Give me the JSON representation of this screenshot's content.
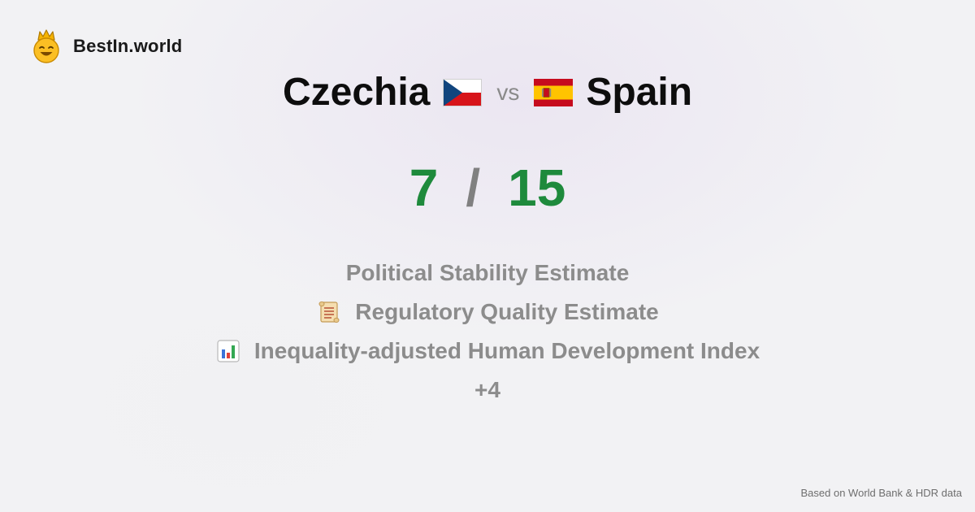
{
  "brand": {
    "name": "BestIn.world",
    "logo_icon": "crowned-smiley-icon"
  },
  "comparison": {
    "left_country": "Czechia",
    "left_flag_icon": "czechia-flag-icon",
    "vs_label": "vs",
    "right_country": "Spain",
    "right_flag_icon": "spain-flag-icon"
  },
  "score": {
    "left": "7",
    "separator": "/",
    "right": "15",
    "color": "#1e8a3c"
  },
  "metrics": [
    {
      "label": "Political Stability Estimate",
      "icon": ""
    },
    {
      "label": "Regulatory Quality Estimate",
      "icon": "scroll-icon"
    },
    {
      "label": "Inequality-adjusted Human Development Index",
      "icon": "bar-chart-icon"
    }
  ],
  "more_count": "+4",
  "footer": {
    "source": "Based on World Bank & HDR data"
  }
}
